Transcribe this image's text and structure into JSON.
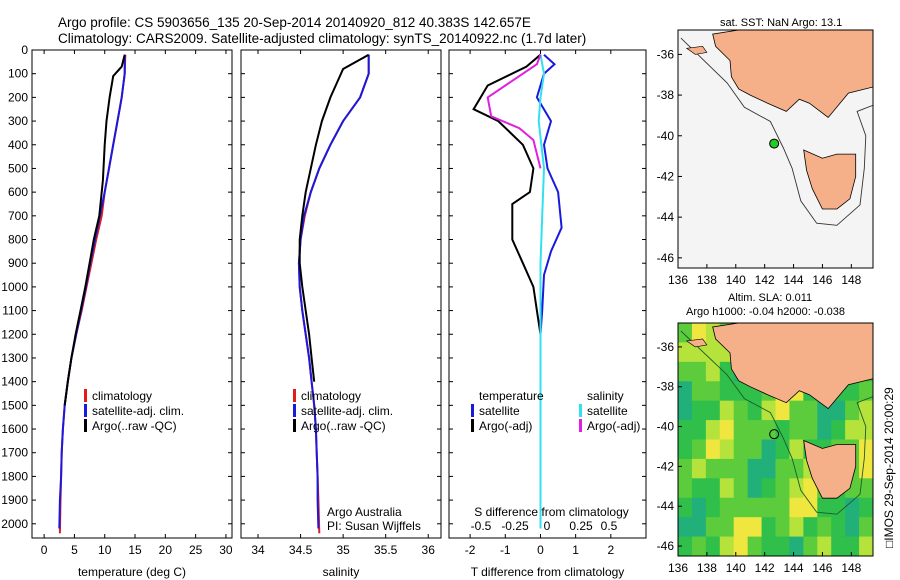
{
  "header": {
    "line1": "Argo profile: CS 5903656_135 20-Sep-2014 20140920_812 40.383S 142.657E",
    "line2": "Climatology: CARS2009. Satellite-adjusted climatology: synTS_20140922.nc (1.7d later)"
  },
  "footer_vertical": "IMOS 29-Sep-2014 20:00:29",
  "colors": {
    "climatology": "#e41a1c",
    "satellite": "#1a1adf",
    "argo": "#000000",
    "satellite_salinity": "#33e0f0",
    "argo_salinity": "#e020e0",
    "land": "#f5b08a",
    "map_bg": "#f2f2f2"
  },
  "chart_data": [
    {
      "type": "line",
      "title": "",
      "xlabel": "temperature (deg C)",
      "ylabel": "",
      "xlim": [
        -2,
        31
      ],
      "ylim": [
        2060,
        0
      ],
      "xticks": [
        0,
        5,
        10,
        15,
        20,
        25,
        30
      ],
      "yticks": [
        0,
        100,
        200,
        300,
        400,
        500,
        600,
        700,
        800,
        900,
        1000,
        1100,
        1200,
        1300,
        1400,
        1500,
        1600,
        1700,
        1800,
        1900,
        2000
      ],
      "legend": {
        "placement": "lower-center",
        "entries": [
          "climatology",
          "satellite-adj. clim.",
          "Argo(..raw -QC)"
        ]
      },
      "series": [
        {
          "name": "climatology",
          "color": "#e41a1c",
          "x": [
            13.4,
            13.3,
            12.8,
            12.1,
            11.4,
            10.7,
            10.0,
            9.5,
            8.6,
            7.8,
            7.0,
            6.2,
            5.3,
            4.5,
            3.9,
            3.4,
            3.1,
            2.9,
            2.8,
            2.7,
            2.6
          ],
          "y": [
            20,
            100,
            200,
            300,
            400,
            500,
            600,
            700,
            800,
            900,
            1000,
            1100,
            1200,
            1300,
            1400,
            1500,
            1600,
            1700,
            1800,
            1900,
            2040
          ]
        },
        {
          "name": "satellite-adj. clim.",
          "color": "#1a1adf",
          "x": [
            13.3,
            13.3,
            12.8,
            12.1,
            11.4,
            10.7,
            10.0,
            9.2,
            8.4,
            7.6,
            6.9,
            6.1,
            5.3,
            4.5,
            3.9,
            3.4,
            3.1,
            2.9,
            2.8,
            2.6,
            2.5
          ],
          "y": [
            20,
            100,
            200,
            300,
            400,
            500,
            600,
            700,
            800,
            900,
            1000,
            1100,
            1200,
            1300,
            1400,
            1500,
            1600,
            1700,
            1800,
            1900,
            2020
          ]
        },
        {
          "name": "Argo(..raw -QC)",
          "color": "#000000",
          "x": [
            13.3,
            12.8,
            11.4,
            10.8,
            10.3,
            10.0,
            9.7,
            9.1,
            8.2,
            7.5,
            6.8,
            6.0,
            5.2,
            4.5,
            3.9,
            3.4
          ],
          "y": [
            20,
            70,
            110,
            200,
            300,
            400,
            550,
            700,
            800,
            900,
            1000,
            1100,
            1200,
            1300,
            1400,
            1500
          ]
        }
      ]
    },
    {
      "type": "line",
      "title": "",
      "xlabel": "salinity",
      "ylabel": "",
      "xlim": [
        33.8,
        36.15
      ],
      "ylim": [
        2060,
        0
      ],
      "xticks": [
        34,
        34.5,
        35,
        35.5,
        36
      ],
      "legend": {
        "placement": "lower-center",
        "entries": [
          "climatology",
          "satellite-adj. clim.",
          "Argo(..raw -QC)"
        ]
      },
      "annotations": [
        "Argo Australia",
        "PI: Susan Wijffels"
      ],
      "series": [
        {
          "name": "climatology",
          "color": "#e41a1c",
          "x": [
            35.3,
            35.3,
            35.2,
            35.0,
            34.85,
            34.72,
            34.62,
            34.55,
            34.5,
            34.48,
            34.49,
            34.52,
            34.56,
            34.6,
            34.63,
            34.66,
            34.68,
            34.69,
            34.7,
            34.71,
            34.72
          ],
          "y": [
            20,
            100,
            200,
            300,
            400,
            500,
            600,
            700,
            800,
            900,
            1000,
            1100,
            1200,
            1300,
            1400,
            1500,
            1600,
            1700,
            1800,
            1900,
            2040
          ]
        },
        {
          "name": "satellite-adj. clim.",
          "color": "#1a1adf",
          "x": [
            35.3,
            35.3,
            35.2,
            35.0,
            34.85,
            34.72,
            34.62,
            34.54,
            34.5,
            34.48,
            34.49,
            34.52,
            34.56,
            34.6,
            34.63,
            34.66,
            34.68,
            34.69,
            34.7,
            34.7,
            34.71
          ],
          "y": [
            20,
            100,
            200,
            300,
            400,
            500,
            600,
            700,
            800,
            900,
            1000,
            1100,
            1200,
            1300,
            1400,
            1500,
            1600,
            1700,
            1800,
            1900,
            2020
          ]
        },
        {
          "name": "Argo(..raw -QC)",
          "color": "#000000",
          "x": [
            35.3,
            35.0,
            34.95,
            34.85,
            34.75,
            34.68,
            34.62,
            34.56,
            34.52,
            34.49,
            34.49,
            34.52,
            34.56,
            34.6,
            34.63,
            34.66
          ],
          "y": [
            20,
            80,
            120,
            200,
            300,
            400,
            500,
            600,
            700,
            800,
            900,
            1000,
            1100,
            1200,
            1300,
            1400
          ]
        }
      ]
    },
    {
      "type": "line",
      "title": "",
      "xlabel": "T difference from climatology",
      "x2label": "S difference from climatology",
      "xlim": [
        -2.6,
        3.0
      ],
      "ylim": [
        2060,
        0
      ],
      "xticks": [
        -2,
        -1,
        0,
        1,
        2
      ],
      "x2ticks": [
        -0.5,
        -0.25,
        0,
        0.25,
        0.5
      ],
      "x2labels": [
        "-0.5",
        "-0.25",
        "0",
        "0.25",
        "0.5"
      ],
      "legend": {
        "placement": "lower-center",
        "groups": [
          {
            "heading": "temperature",
            "entries": [
              "satellite",
              "Argo(-adj)"
            ]
          },
          {
            "heading": "salinity",
            "entries": [
              "satellite",
              "Argo(-adj)"
            ]
          }
        ]
      },
      "series": [
        {
          "name": "satellite",
          "group": "temperature",
          "color": "#1a1adf",
          "x": [
            0.1,
            0.4,
            0.1,
            -0.1,
            0.3,
            0.1,
            0.2,
            0.5,
            0.6,
            0.3,
            0.1,
            0.05,
            0.0,
            0.0,
            0.0,
            0.0,
            0.0,
            0.0,
            0.0,
            0.0
          ],
          "y": [
            20,
            60,
            100,
            200,
            300,
            400,
            500,
            600,
            750,
            850,
            950,
            1100,
            1200,
            1400,
            1500,
            1600,
            1700,
            1800,
            1900,
            2020
          ]
        },
        {
          "name": "Argo(-adj)",
          "group": "temperature",
          "color": "#000000",
          "x": [
            0.0,
            -0.4,
            -1.5,
            -1.9,
            -1.2,
            -0.5,
            -0.2,
            -0.3,
            -0.8,
            -0.8,
            -0.5,
            -0.2,
            -0.1,
            0.0
          ],
          "y": [
            20,
            70,
            150,
            250,
            300,
            400,
            500,
            600,
            650,
            800,
            900,
            1000,
            1100,
            1200
          ]
        },
        {
          "name": "satellite",
          "group": "salinity",
          "color": "#33e0f0",
          "x": [
            0.0,
            0.1,
            0.0,
            -0.05,
            0.1,
            0.05,
            0.0,
            0.0,
            0.0,
            0.0
          ],
          "y": [
            20,
            100,
            200,
            300,
            500,
            700,
            900,
            1200,
            1600,
            2020
          ]
        },
        {
          "name": "Argo(-adj)",
          "group": "salinity",
          "color": "#e020e0",
          "x": [
            0.0,
            -0.1,
            -0.7,
            -1.5,
            -1.4,
            -0.6,
            -0.2,
            0.0
          ],
          "y": [
            20,
            60,
            120,
            200,
            280,
            330,
            380,
            500
          ]
        }
      ]
    },
    {
      "type": "map",
      "title": "sat. SST: NaN Argo: 13.1",
      "xlim": [
        136,
        149.5
      ],
      "ylim": [
        -46.5,
        -34.8
      ],
      "xticks": [
        136,
        138,
        140,
        142,
        144,
        146,
        148
      ],
      "yticks": [
        -36,
        -38,
        -40,
        -42,
        -44,
        -46
      ],
      "profile_position": {
        "lon": 142.657,
        "lat": -40.383,
        "marker_color": "#22cc22"
      }
    },
    {
      "type": "heatmap",
      "title": "Altim. SLA: 0.011",
      "subtitle": "Argo h1000: -0.04 h2000: -0.038",
      "xlim": [
        136,
        149.5
      ],
      "ylim": [
        -46.5,
        -34.8
      ],
      "xticks": [
        136,
        138,
        140,
        142,
        144,
        146,
        148
      ],
      "yticks": [
        -36,
        -38,
        -40,
        -42,
        -44,
        -46
      ],
      "profile_position": {
        "lon": 142.657,
        "lat": -40.383
      }
    }
  ]
}
